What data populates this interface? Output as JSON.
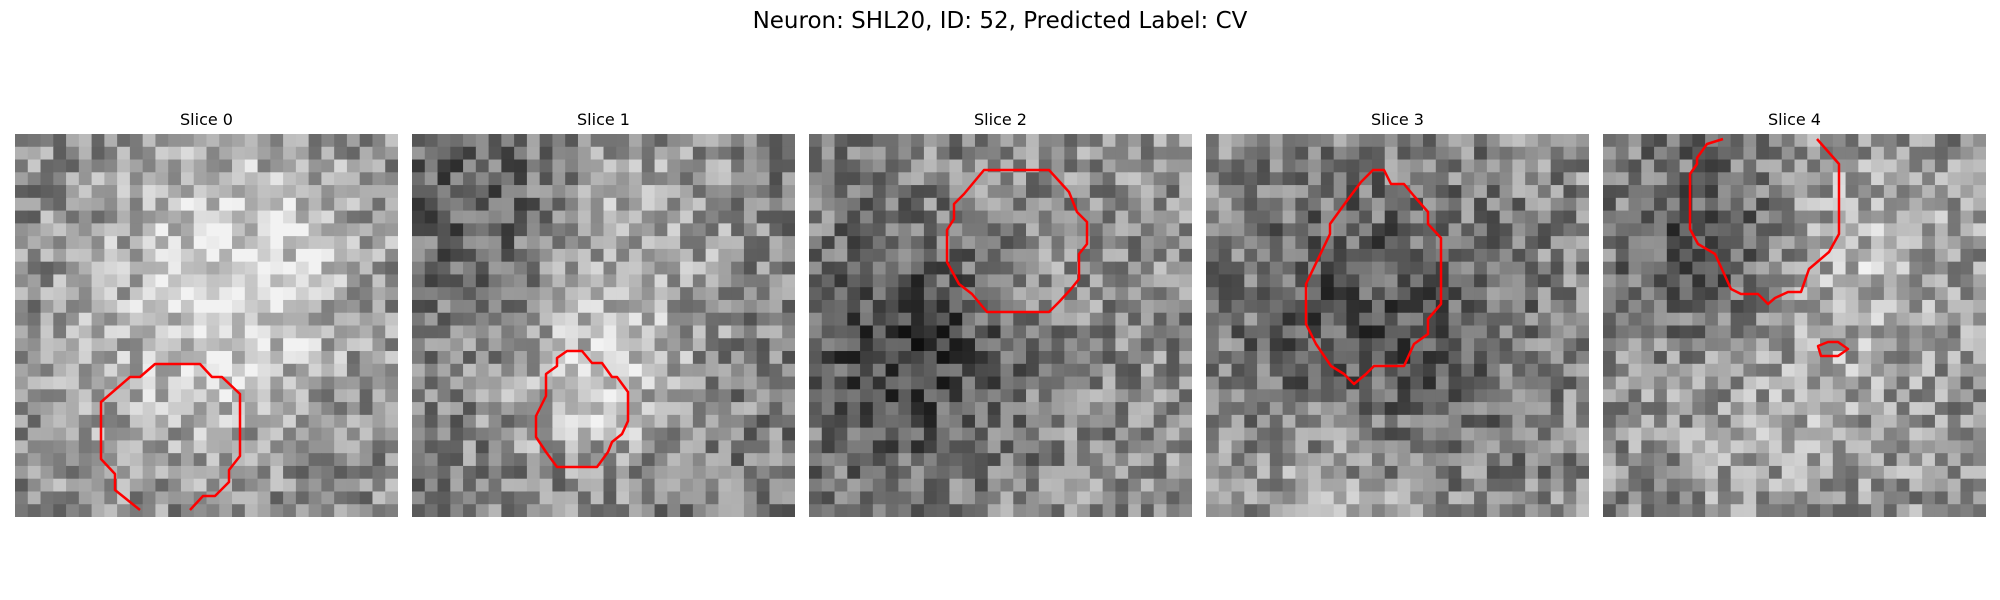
{
  "figure": {
    "title": "Neuron: SHL20, ID: 52, Predicted Label: CV"
  },
  "panels": [
    {
      "title": "Slice 0"
    },
    {
      "title": "Slice 1"
    },
    {
      "title": "Slice 2"
    },
    {
      "title": "Slice 3"
    },
    {
      "title": "Slice 4"
    }
  ],
  "colors": {
    "contour": "#ff0000",
    "background": "#ffffff"
  }
}
